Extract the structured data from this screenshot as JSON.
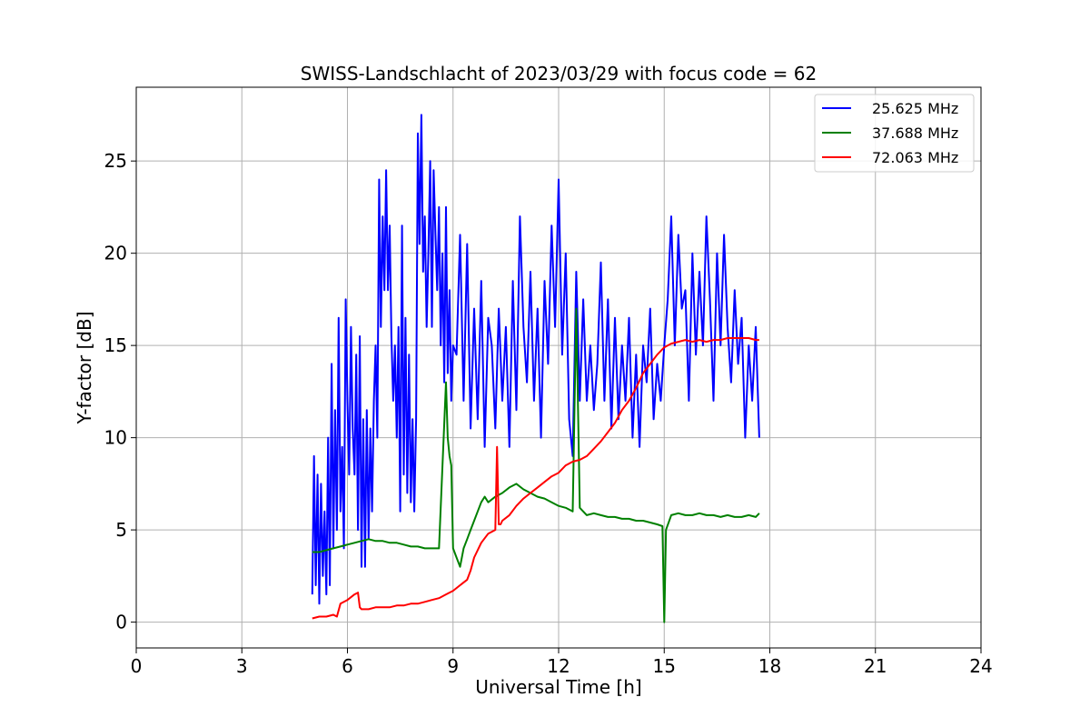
{
  "chart_data": {
    "type": "line",
    "title": "SWISS-Landschlacht of 2023/03/29 with focus code = 62",
    "xlabel": "Universal Time [h]",
    "ylabel": "Y-factor [dB]",
    "xlim": [
      0,
      24
    ],
    "ylim": [
      -1.4,
      29.0
    ],
    "xticks": [
      0,
      3,
      6,
      9,
      12,
      15,
      18,
      21,
      24
    ],
    "yticks": [
      0,
      5,
      10,
      15,
      20,
      25
    ],
    "grid": true,
    "legend_position": "top-right",
    "series": [
      {
        "name": "25.625 MHz",
        "color": "#0000ff",
        "x": [
          5.0,
          5.05,
          5.1,
          5.15,
          5.2,
          5.25,
          5.3,
          5.35,
          5.4,
          5.45,
          5.5,
          5.55,
          5.6,
          5.65,
          5.7,
          5.75,
          5.8,
          5.85,
          5.9,
          5.95,
          6.0,
          6.05,
          6.1,
          6.15,
          6.2,
          6.25,
          6.3,
          6.35,
          6.4,
          6.45,
          6.5,
          6.55,
          6.6,
          6.65,
          6.7,
          6.75,
          6.8,
          6.85,
          6.9,
          6.95,
          7.0,
          7.05,
          7.1,
          7.15,
          7.2,
          7.25,
          7.3,
          7.35,
          7.4,
          7.45,
          7.5,
          7.55,
          7.6,
          7.65,
          7.7,
          7.75,
          7.8,
          7.85,
          7.9,
          7.95,
          8.0,
          8.05,
          8.1,
          8.15,
          8.2,
          8.25,
          8.3,
          8.35,
          8.4,
          8.45,
          8.5,
          8.55,
          8.6,
          8.65,
          8.7,
          8.75,
          8.8,
          8.85,
          8.9,
          8.95,
          9.0,
          9.1,
          9.2,
          9.3,
          9.4,
          9.5,
          9.6,
          9.7,
          9.8,
          9.9,
          10.0,
          10.1,
          10.2,
          10.3,
          10.4,
          10.5,
          10.6,
          10.7,
          10.8,
          10.9,
          11.0,
          11.1,
          11.2,
          11.3,
          11.4,
          11.5,
          11.6,
          11.7,
          11.8,
          11.9,
          12.0,
          12.1,
          12.2,
          12.3,
          12.4,
          12.5,
          12.6,
          12.7,
          12.8,
          12.9,
          13.0,
          13.1,
          13.2,
          13.3,
          13.4,
          13.5,
          13.6,
          13.7,
          13.8,
          13.9,
          14.0,
          14.1,
          14.2,
          14.3,
          14.4,
          14.5,
          14.6,
          14.7,
          14.8,
          14.9,
          15.0,
          15.1,
          15.2,
          15.3,
          15.4,
          15.5,
          15.6,
          15.7,
          15.8,
          15.9,
          16.0,
          16.1,
          16.2,
          16.3,
          16.4,
          16.5,
          16.6,
          16.7,
          16.8,
          16.9,
          17.0,
          17.1,
          17.2,
          17.3,
          17.4,
          17.5,
          17.6,
          17.7
        ],
        "y": [
          1.5,
          9.0,
          2.0,
          8.0,
          1.0,
          7.5,
          2.5,
          6.0,
          1.5,
          10.0,
          2.0,
          14.0,
          4.0,
          11.5,
          5.0,
          16.5,
          6.0,
          9.5,
          4.0,
          17.5,
          12.0,
          8.0,
          16.0,
          10.5,
          8.0,
          14.5,
          5.0,
          15.5,
          3.0,
          11.0,
          3.0,
          11.5,
          4.5,
          10.5,
          6.0,
          12.0,
          15.0,
          10.0,
          24.0,
          16.0,
          22.0,
          18.0,
          24.5,
          18.0,
          21.5,
          15.5,
          12.0,
          15.0,
          10.0,
          16.0,
          6.0,
          21.5,
          8.0,
          16.5,
          7.0,
          14.5,
          6.5,
          11.0,
          6.0,
          11.0,
          26.5,
          20.5,
          27.5,
          19.0,
          22.0,
          16.0,
          20.0,
          25.0,
          16.0,
          24.5,
          21.0,
          18.0,
          22.5,
          15.0,
          20.0,
          13.0,
          22.5,
          13.5,
          18.0,
          12.0,
          15.0,
          14.5,
          21.0,
          12.0,
          20.5,
          10.5,
          17.0,
          11.0,
          18.5,
          9.5,
          16.5,
          15.0,
          10.5,
          17.0,
          12.0,
          16.0,
          9.5,
          18.5,
          11.5,
          22.0,
          16.0,
          13.0,
          19.0,
          12.0,
          17.0,
          10.0,
          18.5,
          14.0,
          21.5,
          16.0,
          24.0,
          14.5,
          20.0,
          11.0,
          9.0,
          19.0,
          12.0,
          17.5,
          12.0,
          15.0,
          11.5,
          14.0,
          19.5,
          12.0,
          17.5,
          10.5,
          16.5,
          11.0,
          15.0,
          12.0,
          16.5,
          10.0,
          14.5,
          9.5,
          15.0,
          13.0,
          17.0,
          11.0,
          14.0,
          12.0,
          15.0,
          17.5,
          22.0,
          15.0,
          21.0,
          17.0,
          18.0,
          12.0,
          20.0,
          14.5,
          19.0,
          15.0,
          22.0,
          17.5,
          12.0,
          20.0,
          15.0,
          21.0,
          16.0,
          13.0,
          18.0,
          14.0,
          16.5,
          10.0,
          15.0,
          12.0,
          16.0,
          10.0
        ]
      },
      {
        "name": "37.688 MHz",
        "color": "#008000",
        "x": [
          5.0,
          5.2,
          5.4,
          5.6,
          5.8,
          6.0,
          6.2,
          6.4,
          6.6,
          6.8,
          7.0,
          7.2,
          7.4,
          7.6,
          7.8,
          8.0,
          8.2,
          8.4,
          8.6,
          8.8,
          8.85,
          8.9,
          8.95,
          9.0,
          9.1,
          9.2,
          9.3,
          9.4,
          9.5,
          9.6,
          9.7,
          9.8,
          9.9,
          10.0,
          10.2,
          10.4,
          10.6,
          10.8,
          11.0,
          11.2,
          11.4,
          11.6,
          11.8,
          12.0,
          12.2,
          12.4,
          12.5,
          12.6,
          12.7,
          12.8,
          13.0,
          13.2,
          13.4,
          13.6,
          13.8,
          14.0,
          14.2,
          14.4,
          14.6,
          14.8,
          14.95,
          15.0,
          15.05,
          15.2,
          15.4,
          15.6,
          15.8,
          16.0,
          16.2,
          16.4,
          16.6,
          16.8,
          17.0,
          17.2,
          17.4,
          17.6,
          17.7
        ],
        "y": [
          3.8,
          3.8,
          3.9,
          4.0,
          4.1,
          4.2,
          4.3,
          4.4,
          4.5,
          4.4,
          4.4,
          4.3,
          4.3,
          4.2,
          4.1,
          4.1,
          4.0,
          4.0,
          4.0,
          13.0,
          10.0,
          9.0,
          8.5,
          4.0,
          3.5,
          3.0,
          4.0,
          4.5,
          5.0,
          5.5,
          6.0,
          6.5,
          6.8,
          6.5,
          6.8,
          7.0,
          7.3,
          7.5,
          7.2,
          7.0,
          6.8,
          6.7,
          6.5,
          6.3,
          6.2,
          6.0,
          17.0,
          6.2,
          6.0,
          5.8,
          5.9,
          5.8,
          5.7,
          5.7,
          5.6,
          5.6,
          5.5,
          5.5,
          5.4,
          5.3,
          5.2,
          0.0,
          5.0,
          5.8,
          5.9,
          5.8,
          5.8,
          5.9,
          5.8,
          5.8,
          5.7,
          5.8,
          5.7,
          5.7,
          5.8,
          5.7,
          5.9
        ]
      },
      {
        "name": "72.063 MHz",
        "color": "#ff0000",
        "x": [
          5.0,
          5.2,
          5.4,
          5.6,
          5.7,
          5.8,
          6.0,
          6.2,
          6.3,
          6.35,
          6.4,
          6.6,
          6.8,
          7.0,
          7.2,
          7.4,
          7.6,
          7.8,
          8.0,
          8.2,
          8.4,
          8.6,
          8.8,
          9.0,
          9.2,
          9.4,
          9.5,
          9.6,
          9.8,
          10.0,
          10.2,
          10.25,
          10.3,
          10.35,
          10.4,
          10.6,
          10.8,
          11.0,
          11.2,
          11.4,
          11.6,
          11.8,
          12.0,
          12.2,
          12.4,
          12.6,
          12.8,
          13.0,
          13.2,
          13.4,
          13.6,
          13.8,
          14.0,
          14.2,
          14.4,
          14.6,
          14.8,
          15.0,
          15.2,
          15.4,
          15.6,
          15.8,
          16.0,
          16.2,
          16.4,
          16.6,
          16.8,
          17.0,
          17.2,
          17.4,
          17.6,
          17.7
        ],
        "y": [
          0.2,
          0.3,
          0.3,
          0.4,
          0.3,
          1.0,
          1.2,
          1.5,
          1.6,
          0.8,
          0.7,
          0.7,
          0.8,
          0.8,
          0.8,
          0.9,
          0.9,
          1.0,
          1.0,
          1.1,
          1.2,
          1.3,
          1.5,
          1.7,
          2.0,
          2.3,
          2.8,
          3.5,
          4.3,
          4.8,
          5.0,
          9.5,
          5.3,
          5.3,
          5.5,
          5.8,
          6.3,
          6.7,
          7.0,
          7.3,
          7.6,
          7.9,
          8.1,
          8.5,
          8.7,
          8.8,
          9.0,
          9.4,
          9.8,
          10.3,
          10.8,
          11.5,
          12.0,
          12.7,
          13.5,
          14.0,
          14.5,
          14.9,
          15.1,
          15.2,
          15.3,
          15.2,
          15.3,
          15.2,
          15.3,
          15.3,
          15.4,
          15.4,
          15.4,
          15.4,
          15.3,
          15.3
        ]
      }
    ]
  }
}
